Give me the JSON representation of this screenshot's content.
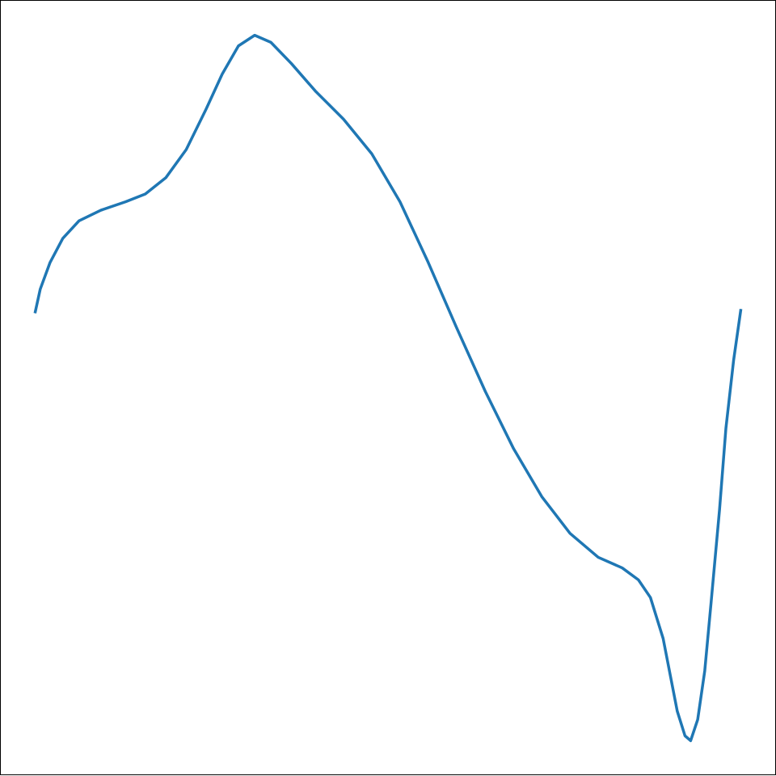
{
  "chart_data": {
    "type": "line",
    "x": [
      0,
      0.007,
      0.021,
      0.039,
      0.062,
      0.093,
      0.128,
      0.156,
      0.185,
      0.214,
      0.242,
      0.265,
      0.288,
      0.311,
      0.334,
      0.363,
      0.397,
      0.437,
      0.477,
      0.517,
      0.557,
      0.597,
      0.638,
      0.678,
      0.718,
      0.758,
      0.798,
      0.832,
      0.855,
      0.872,
      0.89,
      0.91,
      0.921,
      0.929,
      0.939,
      0.949,
      0.958,
      0.97,
      0.979,
      0.99,
      1
    ],
    "series": [
      {
        "color": "#1f77b4",
        "values": [
          0.608,
          0.64,
          0.678,
          0.712,
          0.737,
          0.752,
          0.764,
          0.775,
          0.798,
          0.838,
          0.895,
          0.945,
          0.985,
          1,
          0.99,
          0.96,
          0.921,
          0.881,
          0.832,
          0.764,
          0.678,
          0.586,
          0.495,
          0.414,
          0.346,
          0.294,
          0.26,
          0.245,
          0.228,
          0.203,
          0.145,
          0.042,
          0.007,
          0,
          0.03,
          0.099,
          0.196,
          0.328,
          0.443,
          0.54,
          0.61
        ]
      }
    ],
    "xlim": [
      -0.05,
      1.05
    ],
    "ylim": [
      -0.05,
      1.05
    ],
    "grid": false
  }
}
